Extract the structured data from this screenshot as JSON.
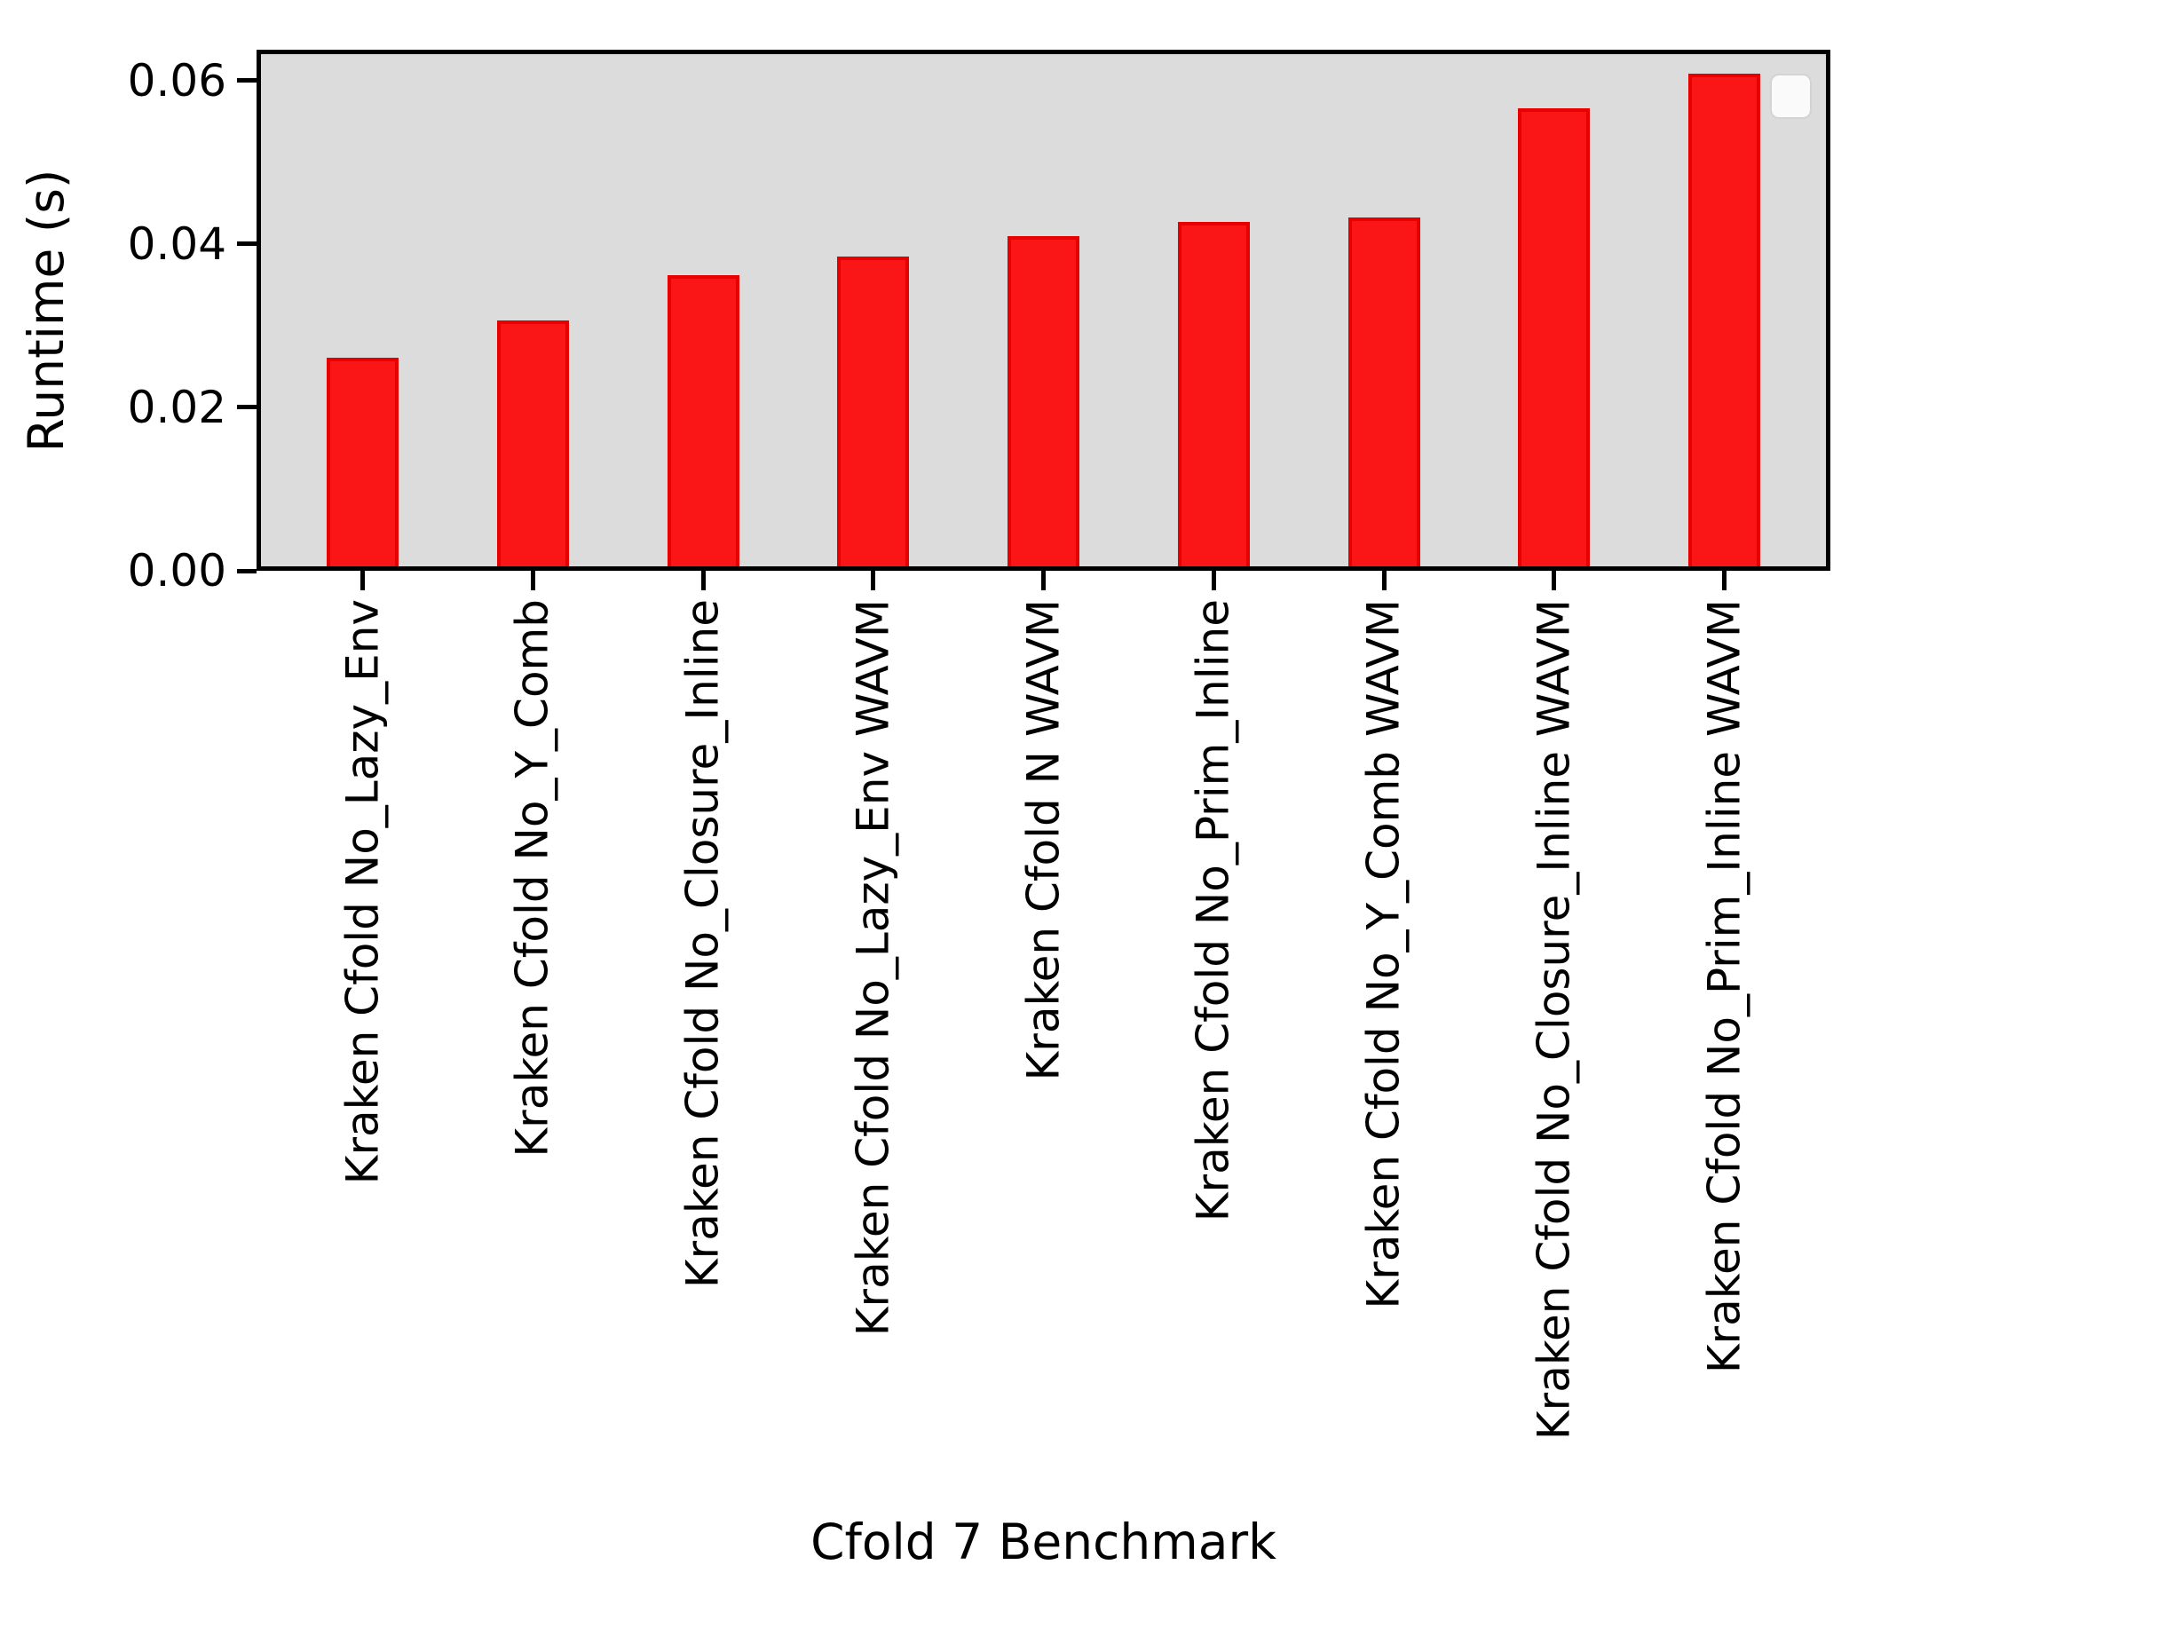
{
  "figure": {
    "background": "#ffffff"
  },
  "chart_data": {
    "type": "bar",
    "title": "",
    "xlabel": "Cfold 7 Benchmark",
    "ylabel": "Runtime (s)",
    "categories": [
      "Kraken Cfold No_Lazy_Env",
      "Kraken Cfold No_Y_Comb",
      "Kraken Cfold No_Closure_Inline",
      "Kraken Cfold No_Lazy_Env WAVM",
      "Kraken Cfold N WAVM",
      "Kraken Cfold No_Prim_Inline",
      "Kraken Cfold No_Y_Comb WAVM",
      "Kraken Cfold No_Closure_Inline WAVM",
      "Kraken Cfold No_Prim_Inline WAVM"
    ],
    "values": [
      0.0261,
      0.0306,
      0.0362,
      0.0385,
      0.041,
      0.0427,
      0.0433,
      0.0566,
      0.0609
    ],
    "yticks": [
      "0.00",
      "0.02",
      "0.04",
      "0.06"
    ],
    "ytick_values": [
      0,
      0.02,
      0.04,
      0.06
    ],
    "ylim": [
      0,
      0.0638
    ],
    "bar_color": "#fa1616",
    "bar_edge_color": "#e60000",
    "plot_bg": "#dcdcdc",
    "grid": false,
    "x_labels_rotation": 90,
    "legend": {
      "visible": true,
      "entries": [],
      "position": "upper right"
    }
  }
}
